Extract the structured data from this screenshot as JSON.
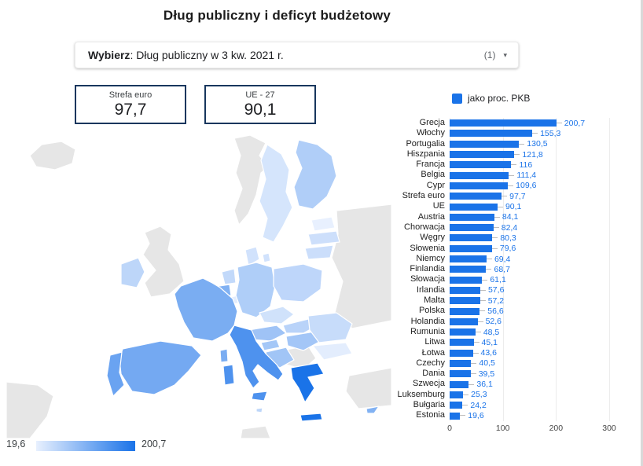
{
  "title": "Dług publiczny i deficyt budżetowy",
  "selector": {
    "prefix": "Wybierz",
    "rest": ": Dług publiczny w 3 kw. 2021 r.",
    "count": "(1)",
    "caret": "▾"
  },
  "scorecards": [
    {
      "label": "Strefa euro",
      "value": "97,7"
    },
    {
      "label": "UE - 27",
      "value": "90,1"
    }
  ],
  "map": {
    "domain": [
      19.6,
      200.7
    ],
    "color_min": "#e8f0fe",
    "color_max": "#1a73e8",
    "non_eu_color": "#e6e6e6",
    "legend_min": "19,6",
    "legend_max": "200,7"
  },
  "chart_data": {
    "type": "bar",
    "orientation": "horizontal",
    "legend": [
      {
        "label": "jako proc. PKB",
        "color": "#1a73e8"
      }
    ],
    "categories": [
      "Grecja",
      "Włochy",
      "Portugalia",
      "Hiszpania",
      "Francja",
      "Belgia",
      "Cypr",
      "Strefa euro",
      "UE",
      "Austria",
      "Chorwacja",
      "Węgry",
      "Słowenia",
      "Niemcy",
      "Finlandia",
      "Słowacja",
      "Irlandia",
      "Malta",
      "Polska",
      "Holandia",
      "Rumunia",
      "Litwa",
      "Łotwa",
      "Czechy",
      "Dania",
      "Szwecja",
      "Luksemburg",
      "Bułgaria",
      "Estonia"
    ],
    "values": [
      200.7,
      155.3,
      130.5,
      121.8,
      116,
      111.4,
      109.6,
      97.7,
      90.1,
      84.1,
      82.4,
      80.3,
      79.6,
      69.4,
      68.7,
      61.1,
      57.6,
      57.2,
      56.6,
      52.6,
      48.5,
      45.1,
      43.6,
      40.5,
      39.5,
      36.1,
      25.3,
      24.2,
      19.6
    ],
    "value_labels": [
      "200,7",
      "155,3",
      "130,5",
      "121,8",
      "116",
      "111,4",
      "109,6",
      "97,7",
      "90,1",
      "84,1",
      "82,4",
      "80,3",
      "79,6",
      "69,4",
      "68,7",
      "61,1",
      "57,6",
      "57,2",
      "56,6",
      "52,6",
      "48,5",
      "45,1",
      "43,6",
      "40,5",
      "39,5",
      "36,1",
      "25,3",
      "24,2",
      "19,6"
    ],
    "xlim": [
      0,
      300
    ],
    "x_ticks": [
      "0",
      "100",
      "200",
      "300"
    ],
    "bar_color": "#1a73e8",
    "value_color": "#1a73e8"
  }
}
